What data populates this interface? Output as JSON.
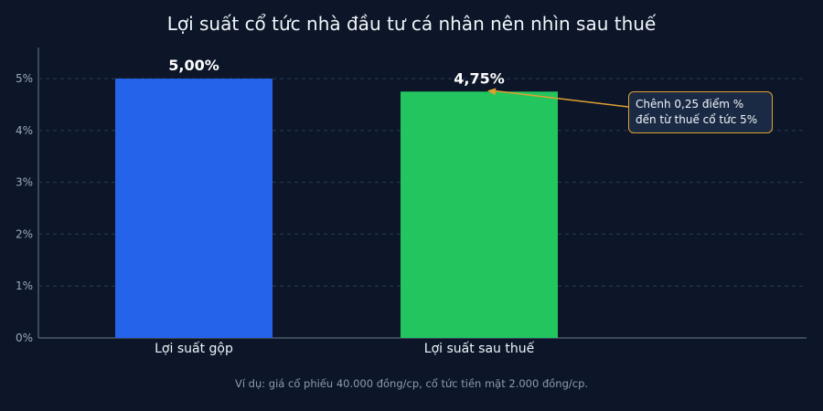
{
  "chart_data": {
    "type": "bar",
    "title": "Lợi suất cổ tức nhà đầu tư cá nhân nên nhìn sau thuế",
    "categories": [
      "Lợi suất gộp",
      "Lợi suất sau thuế"
    ],
    "values": [
      5.0,
      4.75
    ],
    "value_labels": [
      "5,00%",
      "4,75%"
    ],
    "colors": [
      "#2563eb",
      "#22c55e"
    ],
    "ylim": [
      0,
      5.6
    ],
    "yticks": [
      0,
      1,
      2,
      3,
      4,
      5
    ],
    "ytick_labels": [
      "0%",
      "1%",
      "2%",
      "3%",
      "4%",
      "5%"
    ],
    "grid": true,
    "annotation": {
      "line1": "Chênh 0,25 điểm %",
      "line2": "đến từ thuế cổ tức 5%",
      "color": "#e0a030"
    }
  },
  "footnote": "Ví dụ: giá cổ phiếu 40.000 đồng/cp, cổ tức tiền mặt 2.000 đồng/cp."
}
